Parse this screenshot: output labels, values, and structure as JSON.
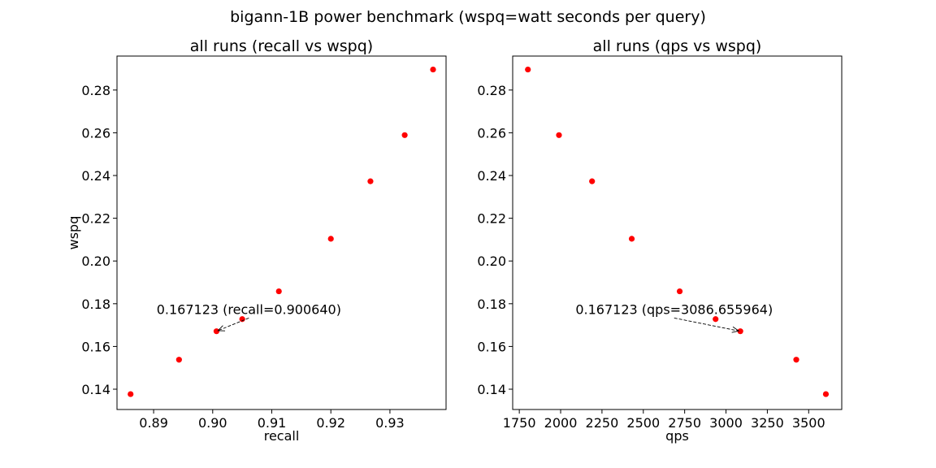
{
  "suptitle": "bigann-1B power benchmark (wspq=watt seconds per query)",
  "colors": {
    "point": "#ff0000",
    "axis": "#000000",
    "background": "#ffffff"
  },
  "chart_data": [
    {
      "type": "scatter",
      "title": "all runs (recall vs wspq)",
      "xlabel": "recall",
      "ylabel": "wspq",
      "xlim": [
        0.8838,
        0.9395
      ],
      "ylim": [
        0.1305,
        0.2959
      ],
      "xticks": [
        "0.89",
        "0.90",
        "0.91",
        "0.92",
        "0.93"
      ],
      "xtick_values": [
        0.89,
        0.9,
        0.91,
        0.92,
        0.93
      ],
      "yticks": [
        "0.14",
        "0.16",
        "0.18",
        "0.20",
        "0.22",
        "0.24",
        "0.26",
        "0.28"
      ],
      "ytick_values": [
        0.14,
        0.16,
        0.18,
        0.2,
        0.22,
        0.24,
        0.26,
        0.28
      ],
      "grid": false,
      "x": [
        0.8861,
        0.8943,
        0.90064,
        0.905,
        0.9112,
        0.92,
        0.9267,
        0.9325,
        0.9373
      ],
      "y": [
        0.1377,
        0.1538,
        0.167123,
        0.1728,
        0.1858,
        0.2104,
        0.2373,
        0.2589,
        0.2896
      ],
      "annotation": {
        "text": "0.167123 (recall=0.900640)",
        "point": [
          0.90064,
          0.167123
        ],
        "text_pos": [
          0.8905,
          0.1775
        ]
      }
    },
    {
      "type": "scatter",
      "title": "all runs (qps vs wspq)",
      "xlabel": "qps",
      "ylabel": "",
      "xlim": [
        1710,
        3700
      ],
      "ylim": [
        0.1305,
        0.2959
      ],
      "xticks": [
        "1750",
        "2000",
        "2250",
        "2500",
        "2750",
        "3000",
        "3250",
        "3500"
      ],
      "xtick_values": [
        1750,
        2000,
        2250,
        2500,
        2750,
        3000,
        3250,
        3500
      ],
      "yticks": [
        "0.14",
        "0.16",
        "0.18",
        "0.20",
        "0.22",
        "0.24",
        "0.26",
        "0.28"
      ],
      "ytick_values": [
        0.14,
        0.16,
        0.18,
        0.2,
        0.22,
        0.24,
        0.26,
        0.28
      ],
      "grid": false,
      "x": [
        1802,
        1990,
        2190,
        2430,
        2720,
        2937,
        3086.655964,
        3425,
        3604
      ],
      "y": [
        0.2896,
        0.2589,
        0.2373,
        0.2104,
        0.1858,
        0.1728,
        0.167123,
        0.1538,
        0.1377
      ],
      "annotation": {
        "text": "0.167123 (qps=3086.655964)",
        "point": [
          3086.655964,
          0.167123
        ],
        "text_pos": [
          2090,
          0.1775
        ]
      }
    }
  ]
}
